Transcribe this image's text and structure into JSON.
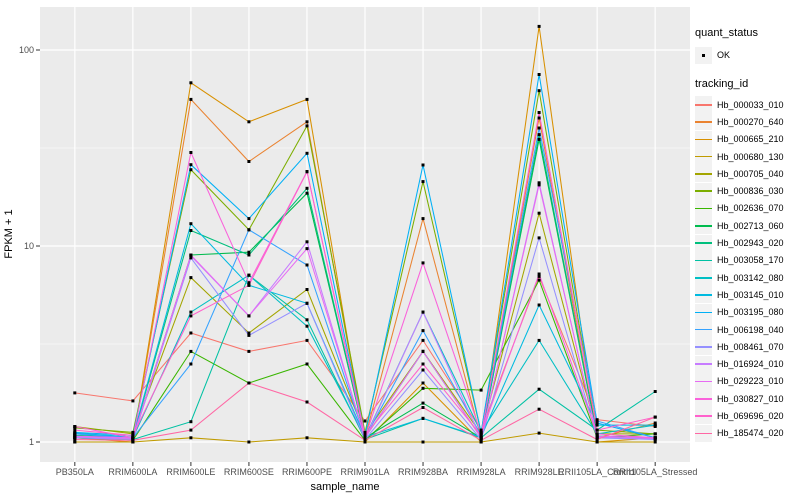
{
  "figure": {
    "xlabel": "sample_name",
    "ylabel": "FPKM + 1"
  },
  "legend": {
    "quant_status_title": "quant_status",
    "ok_label": "OK",
    "ok_marker": "small-black-point",
    "tracking_id_title": "tracking_id"
  },
  "colors": {
    "panel_bg": "#EBEBEB",
    "grid": "#FFFFFF",
    "tick_mark": "#333333",
    "tick_text": "#4D4D4D",
    "axis_title": "#000000",
    "legend_key_bg": "#F2F2F2",
    "marker": "#000000"
  },
  "chart_data": {
    "type": "line",
    "title": "",
    "xlabel": "sample_name",
    "ylabel": "FPKM + 1",
    "yscale": "log10",
    "grid": true,
    "legend_position": "right",
    "marker": "small-black-square",
    "ylim": [
      0.79,
      166
    ],
    "ytick_labels": [
      "1",
      "10",
      "100"
    ],
    "ytick_values": [
      1,
      10,
      100
    ],
    "yminor_values": [
      3.1623,
      31.623
    ],
    "categories": [
      "PB350LA",
      "RRIM600LA",
      "RRIM600LE",
      "RRIM600SE",
      "RRIM600PE",
      "RRIM901LA",
      "RRIM928BA",
      "RRIM928LA",
      "RRIM928LE",
      "RRII105LA_Control",
      "RRII105LA_Stressed"
    ],
    "series": [
      {
        "id": "Hb_000033_010",
        "color": "#F8766D",
        "values": [
          1.78,
          1.62,
          3.6,
          2.9,
          3.3,
          1.28,
          3.3,
          1.15,
          7.0,
          1.3,
          1.2
        ]
      },
      {
        "id": "Hb_000270_640",
        "color": "#EA8331",
        "values": [
          1.05,
          1.0,
          56,
          27,
          43,
          1.05,
          13.8,
          1.05,
          45,
          1.05,
          1.25
        ]
      },
      {
        "id": "Hb_000665_210",
        "color": "#D89000",
        "values": [
          1.0,
          1.0,
          68,
          43,
          56,
          1.0,
          2.0,
          1.0,
          132,
          1.0,
          1.05
        ]
      },
      {
        "id": "Hb_000680_130",
        "color": "#C09B00",
        "values": [
          1.0,
          1.0,
          1.05,
          1.0,
          1.05,
          1.0,
          1.0,
          1.0,
          1.11,
          1.0,
          1.0
        ]
      },
      {
        "id": "Hb_000705_040",
        "color": "#A3A500",
        "values": [
          1.2,
          1.1,
          6.9,
          3.6,
          6.0,
          1.1,
          2.9,
          1.1,
          14.7,
          1.1,
          1.1
        ]
      },
      {
        "id": "Hb_000836_030",
        "color": "#7CAE00",
        "values": [
          1.18,
          1.12,
          24.5,
          12.1,
          41,
          1.12,
          21.3,
          1.12,
          62,
          1.15,
          1.1
        ]
      },
      {
        "id": "Hb_002636_070",
        "color": "#39B600",
        "values": [
          1.05,
          1.02,
          2.9,
          2.0,
          2.5,
          1.02,
          1.88,
          1.84,
          6.7,
          1.05,
          1.1
        ]
      },
      {
        "id": "Hb_002713_060",
        "color": "#00BB4E",
        "values": [
          1.08,
          1.05,
          9.0,
          9.3,
          18.6,
          1.05,
          1.58,
          1.05,
          35,
          1.07,
          1.05
        ]
      },
      {
        "id": "Hb_002943_020",
        "color": "#00BF7D",
        "values": [
          1.08,
          1.05,
          12.0,
          9.0,
          19.7,
          1.05,
          2.9,
          1.05,
          37,
          1.07,
          1.05
        ]
      },
      {
        "id": "Hb_003058_170",
        "color": "#00C1A3",
        "values": [
          1.05,
          1.03,
          1.27,
          7.1,
          4.2,
          1.03,
          1.32,
          1.05,
          1.86,
          1.15,
          1.81
        ]
      },
      {
        "id": "Hb_003142_080",
        "color": "#00BFC4",
        "values": [
          1.1,
          1.05,
          4.6,
          7.1,
          3.9,
          1.05,
          4.6,
          1.12,
          3.3,
          1.1,
          1.22
        ]
      },
      {
        "id": "Hb_003145_010",
        "color": "#00BAE0",
        "values": [
          1.11,
          1.06,
          13.0,
          6.3,
          5.1,
          1.06,
          1.32,
          1.06,
          5.0,
          1.22,
          1.22
        ]
      },
      {
        "id": "Hb_003195_080",
        "color": "#00B0F6",
        "values": [
          1.12,
          1.08,
          26,
          13.8,
          29.7,
          1.08,
          25.9,
          1.12,
          75,
          1.25,
          1.05
        ]
      },
      {
        "id": "Hb_006198_040",
        "color": "#35A2FF",
        "values": [
          1.1,
          1.05,
          2.5,
          12.1,
          8.0,
          1.05,
          3.7,
          1.08,
          40,
          1.28,
          1.05
        ]
      },
      {
        "id": "Hb_008461_070",
        "color": "#9590FF",
        "values": [
          1.05,
          1.03,
          8.7,
          3.5,
          5.1,
          1.03,
          2.33,
          1.03,
          11,
          1.05,
          1.03
        ]
      },
      {
        "id": "Hb_016924_010",
        "color": "#C77CFF",
        "values": [
          1.06,
          1.04,
          8.9,
          4.4,
          10.5,
          1.04,
          4.6,
          1.04,
          21,
          1.06,
          1.04
        ]
      },
      {
        "id": "Hb_029223_010",
        "color": "#E76BF3",
        "values": [
          1.07,
          1.05,
          9.0,
          4.4,
          9.7,
          1.05,
          2.9,
          1.05,
          20.5,
          1.07,
          1.05
        ]
      },
      {
        "id": "Hb_030827_010",
        "color": "#FA62DB",
        "values": [
          1.2,
          1.05,
          30,
          6.5,
          24,
          1.05,
          8.2,
          1.1,
          7.2,
          1.1,
          1.05
        ]
      },
      {
        "id": "Hb_069696_020",
        "color": "#FF61CC",
        "values": [
          1.15,
          1.08,
          4.4,
          6.3,
          23.9,
          1.08,
          2.5,
          1.08,
          48,
          1.15,
          1.34
        ]
      },
      {
        "id": "Hb_185474_020",
        "color": "#FF67A4",
        "values": [
          1.03,
          1.02,
          1.15,
          2.0,
          1.6,
          1.02,
          1.5,
          1.02,
          1.47,
          1.03,
          1.34
        ]
      }
    ]
  }
}
